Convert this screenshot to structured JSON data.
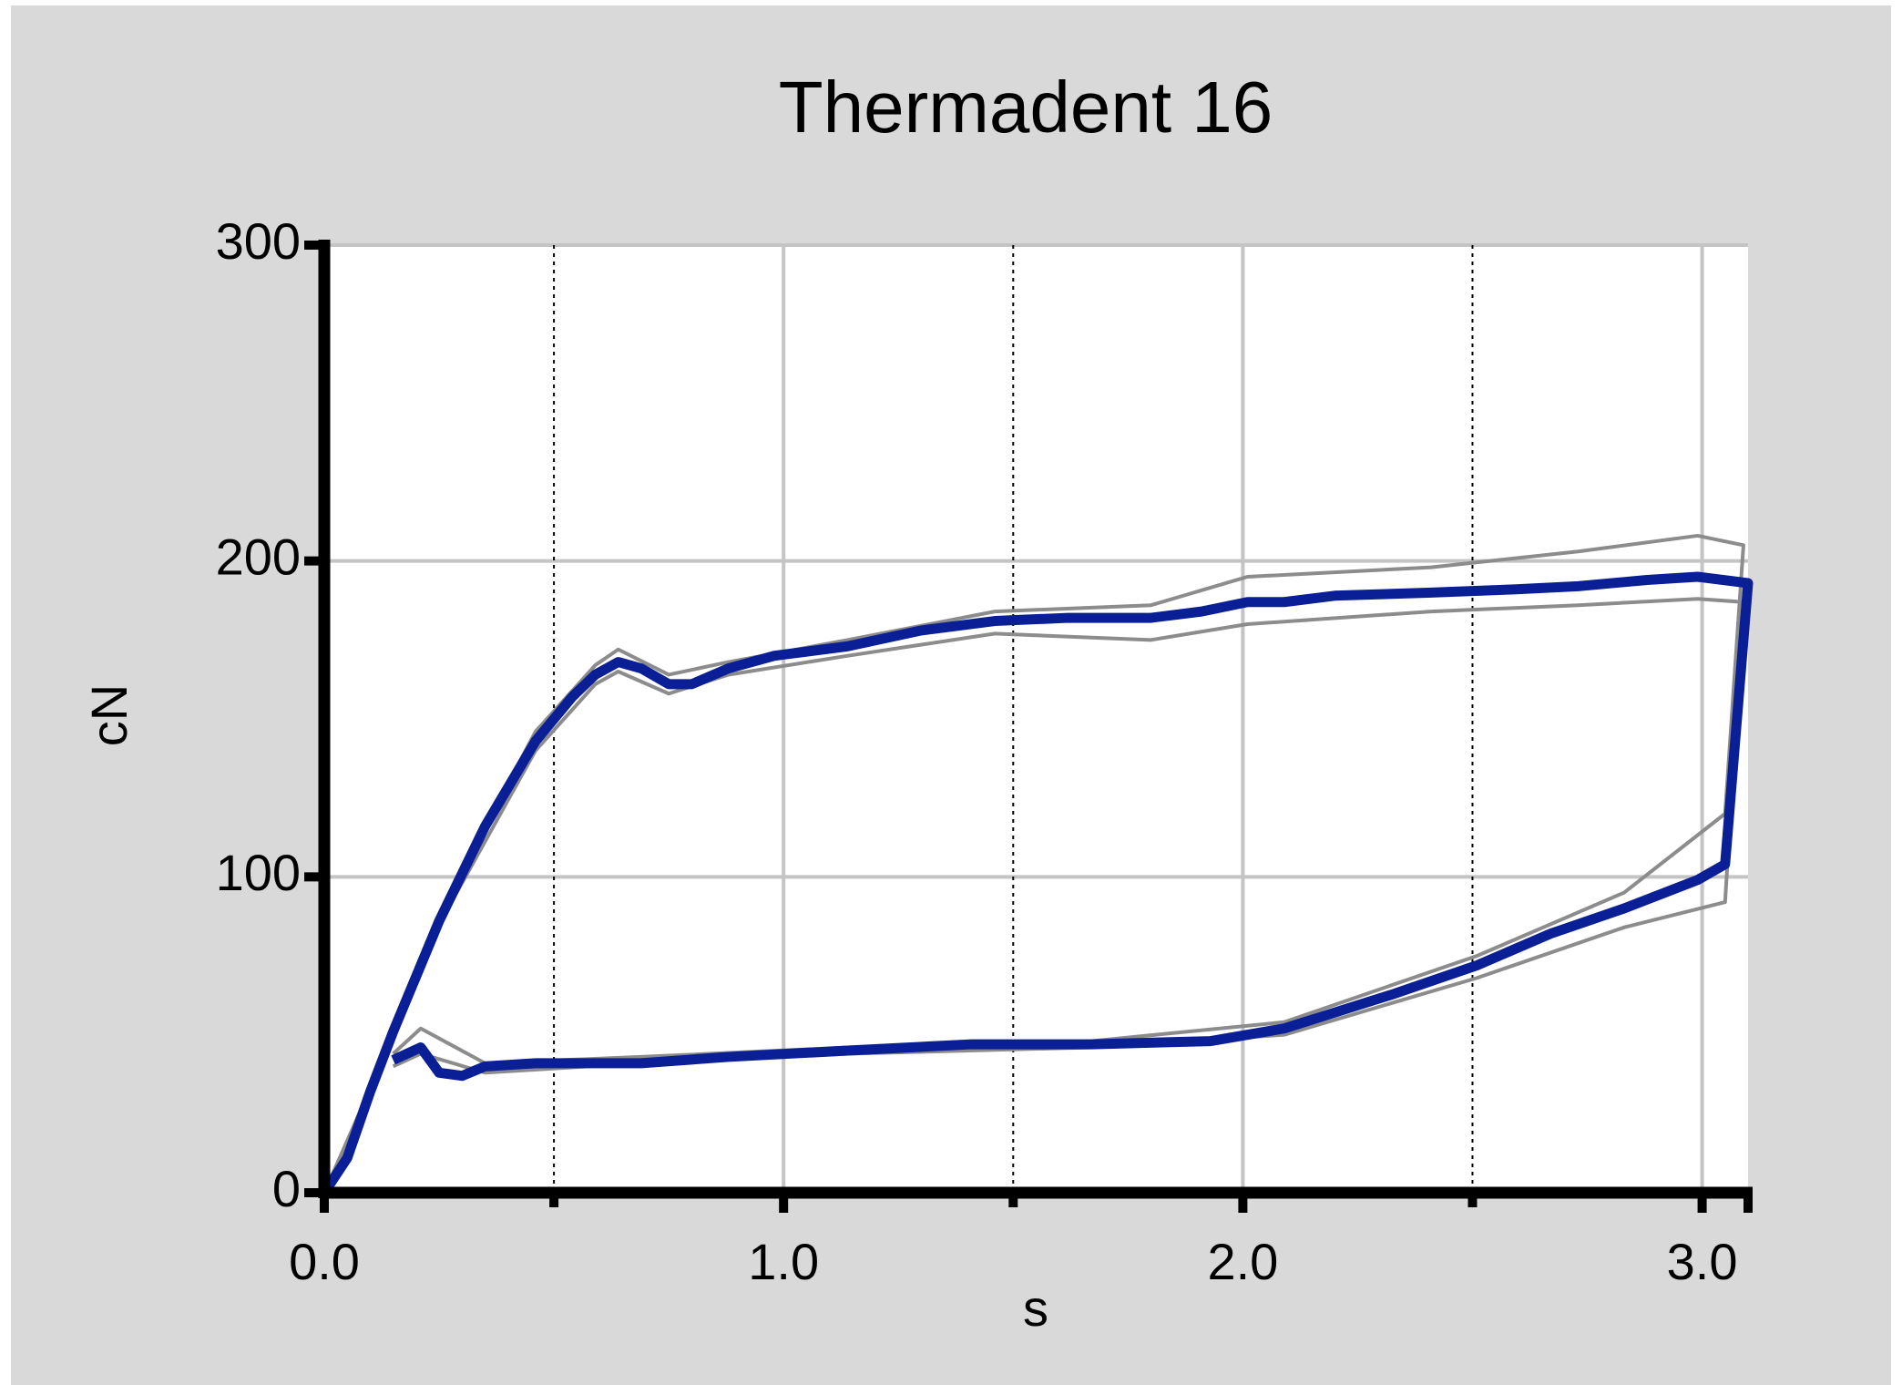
{
  "chart_data": {
    "type": "line",
    "title": "Thermadent 16",
    "x_label": "s",
    "y_label": "cN",
    "xlim": [
      0,
      3.1
    ],
    "ylim": [
      0,
      300
    ],
    "xticks": [
      {
        "value": 0,
        "label": "0.0"
      },
      {
        "value": 1,
        "label": "1.0"
      },
      {
        "value": 2,
        "label": "2.0"
      },
      {
        "value": 3,
        "label": "3.0"
      }
    ],
    "minor_xticks": [
      0.5,
      1.5,
      2.5
    ],
    "yticks": [
      0,
      100,
      200,
      300
    ],
    "grid": true,
    "series": [
      {
        "color": "#8c8c8c",
        "x": [
          0,
          0.1,
          0.25,
          0.46,
          0.59,
          0.64,
          0.75,
          0.88,
          1.14,
          1.46,
          1.8,
          2.01,
          2.41,
          2.73,
          2.99,
          3.09,
          3.05,
          2.83,
          2.51,
          2.09,
          1.67,
          1.14,
          0.69,
          0.35,
          0.21,
          0.15
        ],
        "values": [
          0,
          33,
          88,
          146,
          167,
          172,
          164,
          168,
          175,
          184,
          186,
          195,
          198,
          203,
          208,
          205,
          120,
          95,
          75,
          54,
          48,
          46,
          43,
          41,
          52,
          44
        ]
      },
      {
        "color": "#8c8c8c",
        "x": [
          0,
          0.1,
          0.25,
          0.46,
          0.59,
          0.64,
          0.75,
          0.88,
          1.14,
          1.46,
          1.8,
          2.01,
          2.41,
          2.73,
          2.99,
          3.09,
          3.05,
          2.83,
          2.51,
          2.09,
          1.67,
          1.14,
          0.69,
          0.35,
          0.21,
          0.15
        ],
        "values": [
          0,
          31,
          85,
          140,
          161,
          165,
          158,
          164,
          170,
          177,
          175,
          180,
          184,
          186,
          188,
          187,
          92,
          84,
          68,
          50,
          46,
          44,
          41,
          38,
          44,
          40
        ]
      },
      {
        "color": "#0a1e96",
        "x": [
          0,
          0.05,
          0.1,
          0.15,
          0.25,
          0.35,
          0.46,
          0.54,
          0.59,
          0.64,
          0.69,
          0.75,
          0.8,
          0.88,
          0.98,
          1.14,
          1.3,
          1.46,
          1.62,
          1.8,
          1.91,
          2.01,
          2.09,
          2.2,
          2.41,
          2.59,
          2.73,
          2.88,
          2.99,
          3.1,
          3.05,
          2.99,
          2.83,
          2.67,
          2.51,
          2.33,
          2.09,
          1.93,
          1.67,
          1.41,
          1.14,
          0.88,
          0.69,
          0.46,
          0.35,
          0.3,
          0.25,
          0.21,
          0.15
        ],
        "values": [
          0,
          11,
          32,
          51,
          86,
          116,
          143,
          157,
          164,
          168,
          166,
          161,
          161,
          166,
          170,
          173,
          178,
          181,
          182,
          182,
          184,
          187,
          187,
          189,
          190,
          191,
          192,
          194,
          195,
          193,
          104,
          99,
          90,
          82,
          72,
          63,
          52,
          48,
          47,
          47,
          45,
          43,
          41,
          41,
          40,
          37,
          38,
          46,
          42
        ]
      }
    ]
  }
}
